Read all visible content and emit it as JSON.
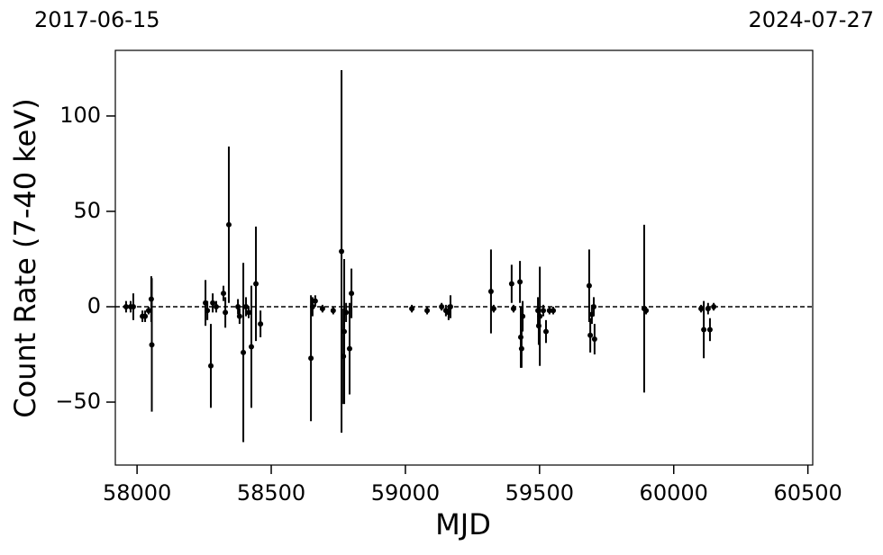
{
  "chart_data": {
    "type": "errorbar",
    "x_label": "MJD",
    "y_label": "Count Rate (7-40 keV)",
    "xlim_labels": [
      "2017-06-15",
      "2024-07-27"
    ],
    "xlim": [
      57919,
      60518
    ],
    "ylim": [
      -83,
      134.4
    ],
    "xticks": [
      58000,
      58500,
      59000,
      59500,
      60000,
      60500
    ],
    "yticks": [
      {
        "value": -50,
        "label": "−50"
      },
      0,
      50,
      100
    ],
    "hline": 0,
    "series": [
      {
        "color": "#000000",
        "x": [
          57959,
          57976,
          57986,
          58020,
          58030,
          58043,
          58053,
          58055,
          58255,
          58262,
          58275,
          58282,
          58295,
          58322,
          58329,
          58342,
          58376,
          58382,
          58396,
          58406,
          58416,
          58426,
          58443,
          58460,
          58648,
          58654,
          58664,
          58691,
          58731,
          58762,
          58769,
          58772,
          58779,
          58792,
          58799,
          59024,
          59081,
          59135,
          59151,
          59161,
          59168,
          59319,
          59329,
          59396,
          59403,
          59427,
          59430,
          59433,
          59437,
          59494,
          59497,
          59501,
          59514,
          59524,
          59537,
          59551,
          59685,
          59689,
          59695,
          59702,
          59705,
          59890,
          59897,
          60102,
          60112,
          60128,
          60135,
          60149
        ],
        "values": [
          0,
          0,
          0,
          -5,
          -5,
          -2,
          4,
          -20,
          2,
          -2,
          -31,
          2,
          0,
          7,
          -3,
          43,
          0,
          -5,
          -24,
          0,
          -3,
          -21,
          12,
          -9,
          -27,
          0,
          3,
          -1,
          -2,
          29,
          -26,
          -13,
          -3,
          -22,
          7,
          -1,
          -2,
          0,
          -2,
          -3,
          0,
          8,
          -1,
          12,
          -1,
          13,
          -16,
          -22,
          -5,
          -2,
          -10,
          -5,
          -2,
          -13,
          -2,
          -2,
          11,
          -15,
          -4,
          0,
          -17,
          -1,
          -2,
          -1,
          -12,
          -1,
          -12,
          0
        ],
        "errors": [
          3,
          3,
          7,
          3,
          3,
          2,
          12,
          35,
          12,
          5,
          22,
          5,
          3,
          4,
          8,
          41,
          4,
          4,
          47,
          5,
          3,
          32,
          30,
          7,
          33,
          5,
          3,
          2,
          2,
          95,
          25,
          38,
          5,
          24,
          13,
          2,
          2,
          2,
          3,
          4,
          6,
          22,
          2,
          10,
          2,
          11,
          16,
          10,
          8,
          7,
          10,
          26,
          3,
          6,
          2,
          2,
          19,
          9,
          5,
          5,
          8,
          44,
          2,
          2,
          15,
          3,
          6,
          2
        ]
      }
    ]
  }
}
